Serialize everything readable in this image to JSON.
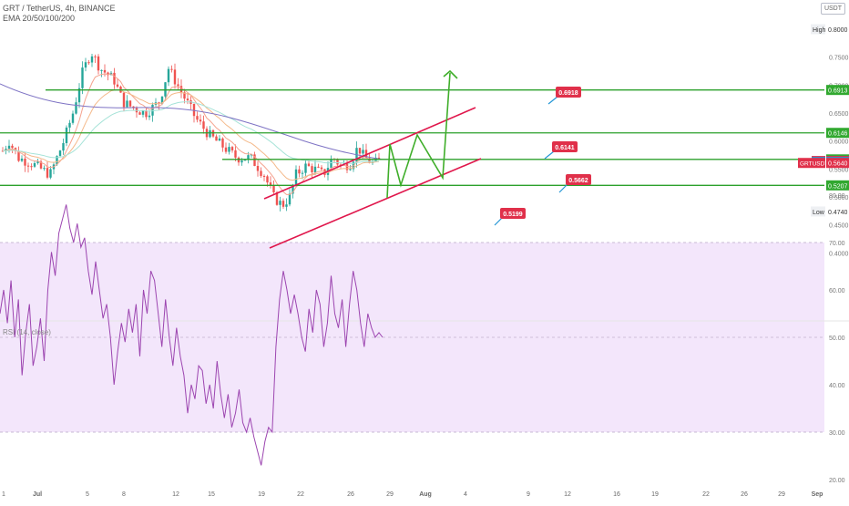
{
  "header": {
    "symbol": "GRT / TetherUS, 4h, BINANCE",
    "indicator": "EMA 20/50/100/200",
    "currency": "USDT"
  },
  "rsi_label": "RSI (14, close)",
  "colors": {
    "up": "#26a69a",
    "down": "#ef5350",
    "level_line": "#2ca02c",
    "channel": "#e0174c",
    "projection": "#3fae2a",
    "ema20": "#f5a38e",
    "ema50": "#f4b98a",
    "ema100": "#a6e3d8",
    "ema200": "#7e73c4",
    "rsi_line": "#9c45b0",
    "rsi_band": "#f3e6fb",
    "badge_red": "#e0304a",
    "badge_blue": "#2496d6",
    "badge_green": "#31a82f"
  },
  "chart_data": [
    {
      "type": "candlestick",
      "x_tick_labels": [
        "Jul",
        "5",
        "8",
        "12",
        "15",
        "19",
        "22",
        "26",
        "29",
        "Aug",
        "4",
        "9",
        "12",
        "16",
        "19",
        "22",
        "26",
        "29",
        "Sep"
      ],
      "y_tick_labels": [
        "0.8000",
        "0.7500",
        "0.7000",
        "0.6500",
        "0.6000",
        "0.5500",
        "0.5000",
        "0.4500",
        "0.4000"
      ],
      "ylim": [
        0.38,
        0.81
      ],
      "price_labels": [
        {
          "text": "High",
          "value": "0.8000",
          "price": 0.8,
          "style": "plain"
        },
        {
          "text": "",
          "value": "0.6913",
          "price": 0.6913,
          "style": "green"
        },
        {
          "text": "",
          "value": "0.6146",
          "price": 0.6146,
          "style": "green"
        },
        {
          "text": "",
          "value": "0.5672",
          "price": 0.5672,
          "style": "green"
        },
        {
          "text": "Ask",
          "value": "0.5643",
          "price": 0.5643,
          "style": "red"
        },
        {
          "text": "Bid",
          "value": "0.5640",
          "price": 0.5626,
          "style": "blue"
        },
        {
          "text": "GRTUSDT",
          "value": "0.5640",
          "price": 0.5608,
          "style": "red"
        },
        {
          "text": "",
          "value": "0.5207",
          "price": 0.5207,
          "style": "green"
        },
        {
          "text": "Low",
          "value": "0.4740",
          "price": 0.474,
          "style": "plain"
        }
      ],
      "horizontal_levels": [
        0.6913,
        0.6146,
        0.5672,
        0.5207
      ],
      "callouts": [
        "0.6918",
        "0.6141",
        "0.5662",
        "0.5199"
      ]
    },
    {
      "type": "line",
      "title": "RSI (14, close)",
      "y_tick_labels": [
        "80.00",
        "70.00",
        "60.00",
        "50.00",
        "40.00",
        "30.00",
        "20.00"
      ],
      "ylim": [
        18,
        86
      ],
      "band": [
        30,
        70
      ],
      "midline": 50,
      "values": [
        55,
        60,
        53,
        62,
        50,
        58,
        42,
        51,
        57,
        44,
        48,
        54,
        45,
        60,
        68,
        63,
        72,
        75,
        78,
        73,
        70,
        74,
        69,
        71,
        64,
        59,
        66,
        60,
        54,
        57,
        50,
        40,
        47,
        53,
        49,
        56,
        51,
        57,
        46,
        60,
        55,
        64,
        62,
        55,
        48,
        58,
        50,
        44,
        52,
        46,
        42,
        34,
        40,
        37,
        44,
        43,
        36,
        40,
        35,
        45,
        38,
        33,
        38,
        31,
        34,
        39,
        32,
        30,
        33,
        29,
        26,
        23,
        28,
        31,
        30,
        48,
        58,
        64,
        60,
        55,
        59,
        55,
        50,
        47,
        56,
        51,
        60,
        57,
        48,
        53,
        63,
        55,
        52,
        58,
        48,
        57,
        64,
        60,
        53,
        48,
        55,
        52,
        50,
        51,
        50
      ]
    }
  ]
}
